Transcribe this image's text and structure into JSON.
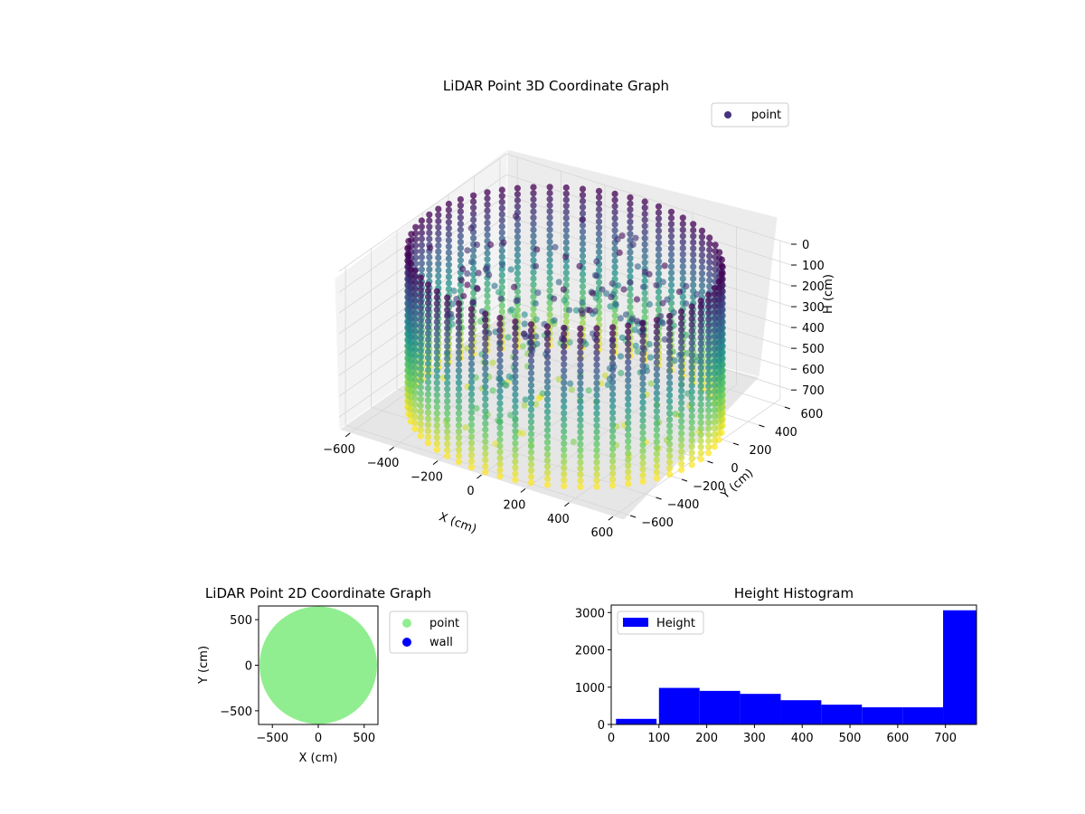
{
  "chart_data": [
    {
      "type": "scatter",
      "projection": "3d",
      "title": "LiDAR Point 3D Coordinate Graph",
      "xlabel": "X (cm)",
      "ylabel": "Y (cm)",
      "zlabel": "H (cm)",
      "xlim": [
        -650,
        650
      ],
      "ylim": [
        -650,
        650
      ],
      "zlim": [
        0,
        760
      ],
      "z_inverted": true,
      "x_ticks": [
        "−600",
        "−400",
        "−200",
        "0",
        "200",
        "400",
        "600"
      ],
      "y_ticks": [
        "−600",
        "−400",
        "−200",
        "0",
        "200",
        "400",
        "600"
      ],
      "z_ticks": [
        "0",
        "100",
        "200",
        "300",
        "400",
        "500",
        "600",
        "700"
      ],
      "colormap": "viridis",
      "colormap_stops": [
        "#440154",
        "#3b528b",
        "#21918c",
        "#5ec962",
        "#fde725"
      ],
      "legend": {
        "label": "point",
        "placement": "top-right",
        "color": "#46327e"
      },
      "description_data": {
        "wall_radius_cm": 620,
        "wall_height_range_cm": [
          0,
          760
        ],
        "wall_columns": 60,
        "interior_scatter_height_range_cm": [
          0,
          760
        ]
      }
    },
    {
      "type": "scatter",
      "title": "LiDAR Point 2D Coordinate Graph",
      "xlabel": "X (cm)",
      "ylabel": "Y (cm)",
      "xlim": [
        -650,
        650
      ],
      "ylim": [
        -650,
        650
      ],
      "x_ticks": [
        "−500",
        "0",
        "500"
      ],
      "y_ticks": [
        "−500",
        "0",
        "500"
      ],
      "series": [
        {
          "name": "point",
          "color": "#90ee90",
          "shape": "disc",
          "radius_cm": 640
        },
        {
          "name": "wall",
          "color": "#0000ff"
        }
      ],
      "legend": {
        "placement": "outside-right"
      }
    },
    {
      "type": "bar",
      "subtype": "histogram",
      "title": "Height Histogram",
      "xlim": [
        0,
        765
      ],
      "ylim": [
        0,
        3200
      ],
      "x_ticks": [
        "0",
        "100",
        "200",
        "300",
        "400",
        "500",
        "600",
        "700"
      ],
      "y_ticks": [
        "0",
        "1000",
        "2000",
        "3000"
      ],
      "bins": [
        {
          "start": 10,
          "end": 95,
          "count": 150
        },
        {
          "start": 100,
          "end": 185,
          "count": 980
        },
        {
          "start": 185,
          "end": 270,
          "count": 900
        },
        {
          "start": 270,
          "end": 355,
          "count": 820
        },
        {
          "start": 355,
          "end": 440,
          "count": 650
        },
        {
          "start": 440,
          "end": 525,
          "count": 530
        },
        {
          "start": 525,
          "end": 610,
          "count": 460
        },
        {
          "start": 610,
          "end": 695,
          "count": 460
        },
        {
          "start": 695,
          "end": 765,
          "count": 3060
        }
      ],
      "series": [
        {
          "name": "Height",
          "color": "#0000ff"
        }
      ],
      "legend": {
        "placement": "top-left"
      }
    }
  ]
}
